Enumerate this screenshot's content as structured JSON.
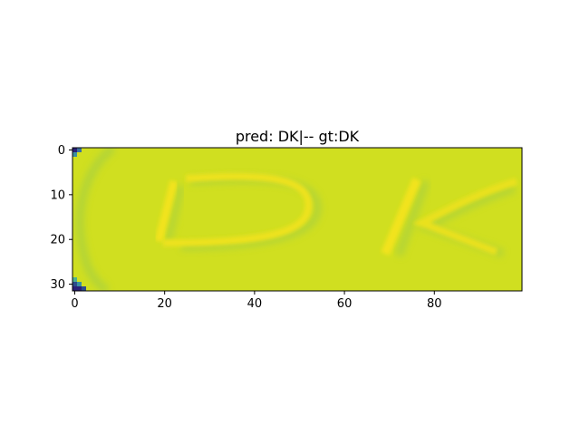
{
  "chart_data": {
    "type": "heatmap",
    "title": "pred: DK|-- gt:DK",
    "image_shape": [
      32,
      100
    ],
    "colormap": "viridis",
    "colors": {
      "background": "#d0df20",
      "strokes": "#e9e21d",
      "shadow": "#a8d040",
      "corner_dark": "#2a2078"
    },
    "x_ticks": [
      0,
      20,
      40,
      60,
      80
    ],
    "x_tick_labels": [
      "0",
      "20",
      "40",
      "60",
      "80"
    ],
    "y_ticks": [
      0,
      10,
      20,
      30
    ],
    "y_tick_labels": [
      "0",
      "10",
      "20",
      "30"
    ],
    "xlim": [
      -0.5,
      99.5
    ],
    "ylim": [
      31.5,
      -0.5
    ],
    "grid": false,
    "depicted_text": "DK"
  }
}
